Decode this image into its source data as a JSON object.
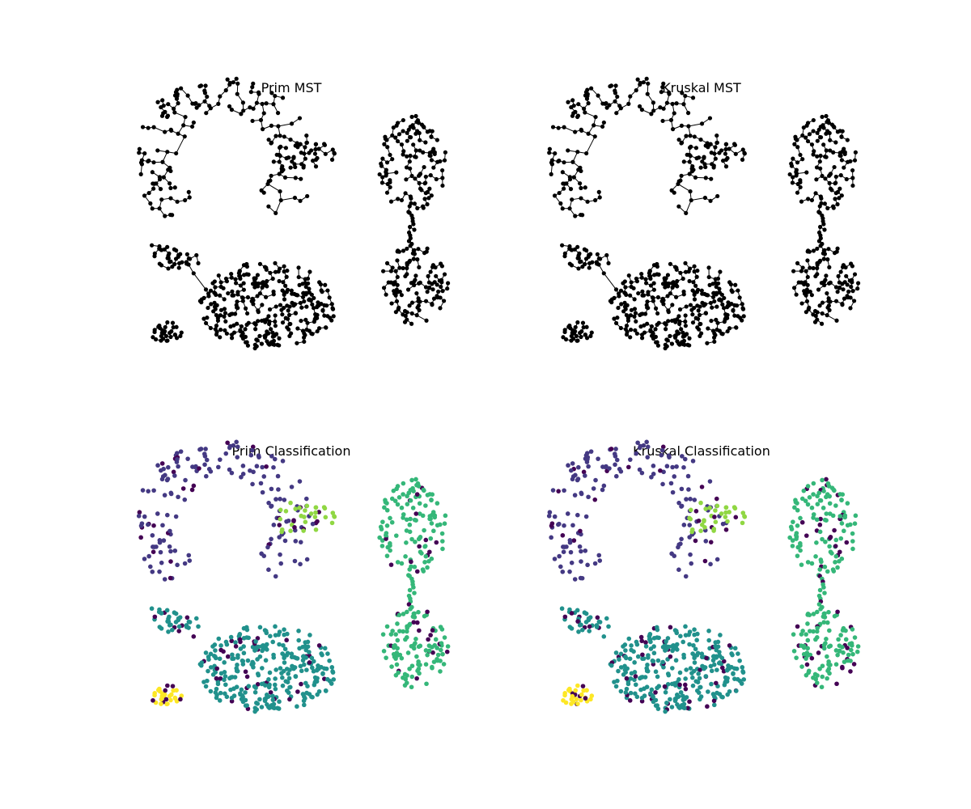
{
  "figure": {
    "panels": [
      {
        "id": "prim-mst",
        "title": "Prim MST",
        "kind": "mst"
      },
      {
        "id": "kruskal-mst",
        "title": "Kruskal MST",
        "kind": "mst"
      },
      {
        "id": "prim-class",
        "title": "Prim Classification",
        "kind": "classification"
      },
      {
        "id": "kruskal-class",
        "title": "Kruskal Classification",
        "kind": "classification"
      }
    ]
  },
  "chart_data": [
    {
      "type": "scatter",
      "title": "Prim MST",
      "axes_visible": false,
      "description_of_marks": "black nodes connected by minimum spanning tree edges",
      "clusters": [
        {
          "name": "crescent",
          "approx_points": 180
        },
        {
          "name": "small-top",
          "approx_points": 35
        },
        {
          "name": "right-top-blob",
          "approx_points": 130
        },
        {
          "name": "right-bottom-blob",
          "approx_points": 120
        },
        {
          "name": "left-tail",
          "approx_points": 40
        },
        {
          "name": "large-ellipse",
          "approx_points": 320
        },
        {
          "name": "small-bottom-left",
          "approx_points": 30
        }
      ],
      "colors": {
        "node": "#000000",
        "edge": "#000000"
      }
    },
    {
      "type": "scatter",
      "title": "Kruskal MST",
      "axes_visible": false,
      "description_of_marks": "black nodes connected by minimum spanning tree edges",
      "clusters": [
        {
          "name": "crescent",
          "approx_points": 180
        },
        {
          "name": "small-top",
          "approx_points": 35
        },
        {
          "name": "right-top-blob",
          "approx_points": 130
        },
        {
          "name": "right-bottom-blob",
          "approx_points": 120
        },
        {
          "name": "left-tail",
          "approx_points": 40
        },
        {
          "name": "large-ellipse",
          "approx_points": 320
        },
        {
          "name": "small-bottom-left",
          "approx_points": 30
        }
      ],
      "colors": {
        "node": "#000000",
        "edge": "#000000"
      }
    },
    {
      "type": "scatter",
      "title": "Prim Classification",
      "axes_visible": false,
      "classes": [
        {
          "cluster": "crescent",
          "color": "#443983"
        },
        {
          "cluster": "small-top",
          "color": "#90d743"
        },
        {
          "cluster": "right-blobs",
          "color": "#35b779"
        },
        {
          "cluster": "large-ellipse-and-tail",
          "color": "#21918c"
        },
        {
          "cluster": "small-bottom-left",
          "color": "#fde725"
        },
        {
          "cluster": "noise",
          "color": "#440154"
        }
      ]
    },
    {
      "type": "scatter",
      "title": "Kruskal Classification",
      "axes_visible": false,
      "classes": [
        {
          "cluster": "crescent",
          "color": "#443983"
        },
        {
          "cluster": "small-top",
          "color": "#90d743"
        },
        {
          "cluster": "right-blobs",
          "color": "#35b779"
        },
        {
          "cluster": "large-ellipse-and-tail",
          "color": "#21918c"
        },
        {
          "cluster": "small-bottom-left",
          "color": "#fde725"
        },
        {
          "cluster": "noise",
          "color": "#440154"
        }
      ]
    }
  ]
}
